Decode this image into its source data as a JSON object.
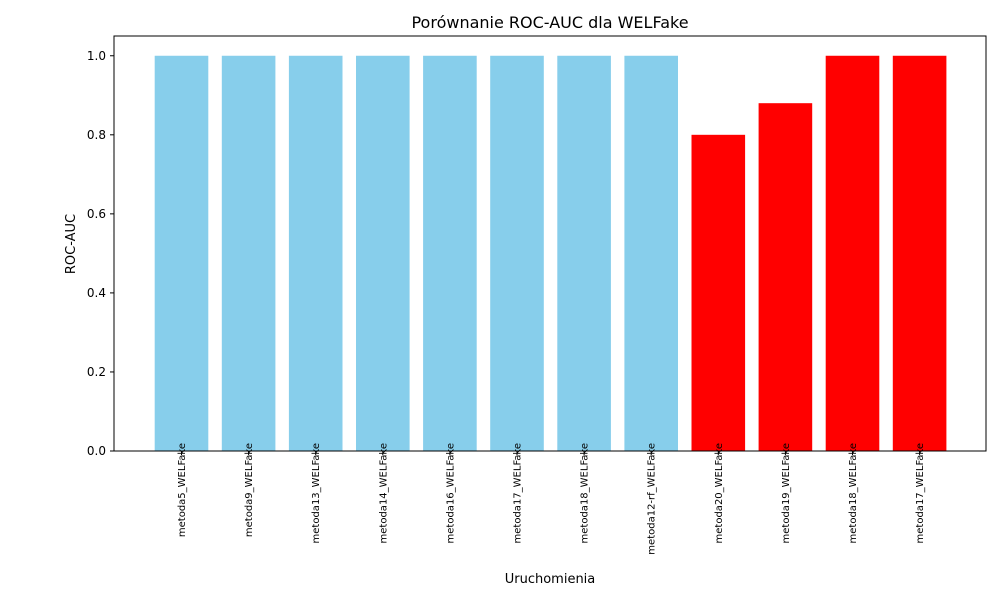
{
  "chart_data": {
    "type": "bar",
    "title": "Porównanie ROC-AUC dla WELFake",
    "xlabel": "Uruchomienia",
    "ylabel": "ROC-AUC",
    "categories": [
      "metoda5_WELFake",
      "metoda9_WELFake",
      "metoda13_WELFake",
      "metoda14_WELFake",
      "metoda16_WELFake",
      "metoda17_WELFake",
      "metoda18_WELFake",
      "metoda12-rf_WELFake",
      "metoda20_WELFake",
      "metoda19_WELFake",
      "metoda18_WELFake",
      "metoda17_WELFake"
    ],
    "values": [
      1.0,
      1.0,
      1.0,
      1.0,
      1.0,
      1.0,
      1.0,
      1.0,
      0.8,
      0.88,
      1.0,
      1.0
    ],
    "bar_colors": [
      "#87ceeb",
      "#87ceeb",
      "#87ceeb",
      "#87ceeb",
      "#87ceeb",
      "#87ceeb",
      "#87ceeb",
      "#87ceeb",
      "#ff0000",
      "#ff0000",
      "#ff0000",
      "#ff0000"
    ],
    "ylim": [
      0,
      1.05
    ],
    "yticks": [
      "0.0",
      "0.2",
      "0.4",
      "0.6",
      "0.8",
      "1.0"
    ],
    "grid": false,
    "legend": "none"
  }
}
